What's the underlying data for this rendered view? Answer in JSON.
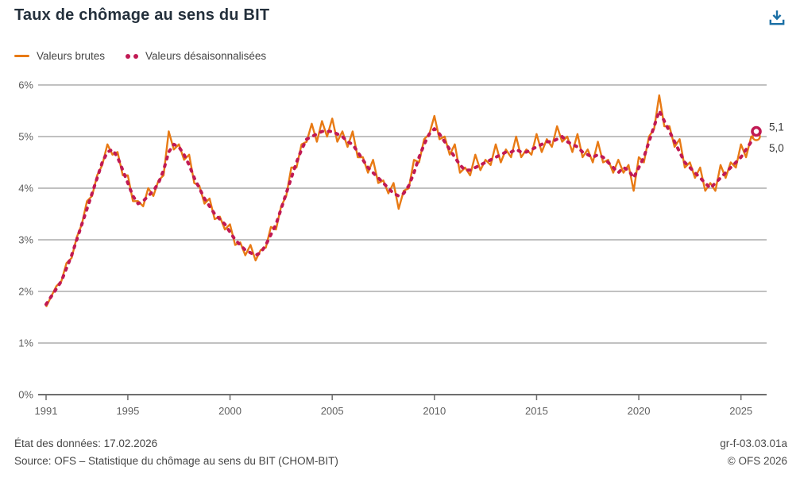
{
  "header": {
    "title": "Taux de chômage au sens du BIT"
  },
  "legend": [
    {
      "label": "Valeurs brutes",
      "color": "#e87a14",
      "style": "solid"
    },
    {
      "label": "Valeurs désaisonnalisées",
      "color": "#c11a54",
      "style": "dotted"
    }
  ],
  "colors": {
    "brut_orange": "#e87a14",
    "seasonal_magenta": "#c11a54",
    "download_blue": "#1a6fa5",
    "gridline": "#9c9c9c",
    "axis": "#6e6e6e",
    "title_text": "#24303c",
    "body_text": "#454545"
  },
  "chart_data": {
    "type": "line",
    "title": "Taux de chômage au sens du BIT",
    "xlabel": "",
    "ylabel": "",
    "grid": "horizontal",
    "legend_position": "top-left",
    "frequency": "quarterly",
    "x_start": "1991-Q1",
    "x_end": "2025-Q4",
    "x_tick_labels": [
      "1991",
      "1995",
      "2000",
      "2005",
      "2010",
      "2015",
      "2020",
      "2025"
    ],
    "y_tick_labels": [
      "0%",
      "1%",
      "2%",
      "3%",
      "4%",
      "5%",
      "6%"
    ],
    "ylim": [
      0,
      6
    ],
    "end_labels": [
      "5,1",
      "5,0"
    ],
    "series": [
      {
        "name": "Valeurs brutes",
        "color": "#e87a14",
        "style": "solid",
        "values": [
          1.7,
          1.9,
          2.1,
          2.2,
          2.55,
          2.65,
          3.05,
          3.3,
          3.75,
          3.85,
          4.25,
          4.45,
          4.85,
          4.65,
          4.7,
          4.25,
          4.25,
          3.75,
          3.75,
          3.65,
          4.0,
          3.85,
          4.15,
          4.25,
          5.1,
          4.75,
          4.85,
          4.55,
          4.65,
          4.1,
          4.05,
          3.7,
          3.8,
          3.4,
          3.45,
          3.2,
          3.3,
          2.9,
          2.95,
          2.7,
          2.9,
          2.6,
          2.8,
          2.85,
          3.25,
          3.2,
          3.65,
          3.85,
          4.4,
          4.4,
          4.85,
          4.9,
          5.25,
          4.9,
          5.3,
          5.0,
          5.35,
          4.9,
          5.1,
          4.8,
          5.1,
          4.6,
          4.6,
          4.3,
          4.55,
          4.1,
          4.15,
          3.9,
          4.1,
          3.6,
          3.95,
          4.0,
          4.55,
          4.5,
          4.95,
          5.05,
          5.4,
          4.95,
          5.0,
          4.65,
          4.85,
          4.3,
          4.4,
          4.25,
          4.65,
          4.35,
          4.55,
          4.45,
          4.85,
          4.5,
          4.75,
          4.6,
          5.0,
          4.6,
          4.75,
          4.65,
          5.05,
          4.7,
          4.95,
          4.8,
          5.2,
          4.9,
          5.0,
          4.7,
          5.05,
          4.6,
          4.75,
          4.5,
          4.9,
          4.5,
          4.55,
          4.3,
          4.55,
          4.3,
          4.45,
          3.95,
          4.6,
          4.5,
          5.0,
          5.15,
          5.8,
          5.2,
          5.2,
          4.8,
          4.95,
          4.4,
          4.5,
          4.2,
          4.4,
          3.95,
          4.1,
          3.95,
          4.45,
          4.2,
          4.5,
          4.4,
          4.85,
          4.6,
          5.0,
          5.0
        ]
      },
      {
        "name": "Valeurs désaisonnalisées",
        "color": "#c11a54",
        "style": "dotted",
        "values": [
          1.75,
          1.9,
          2.05,
          2.2,
          2.45,
          2.7,
          3.0,
          3.3,
          3.6,
          3.9,
          4.2,
          4.5,
          4.7,
          4.75,
          4.6,
          4.35,
          4.1,
          3.85,
          3.7,
          3.75,
          3.85,
          3.95,
          4.1,
          4.35,
          4.7,
          4.85,
          4.8,
          4.65,
          4.45,
          4.2,
          4.0,
          3.8,
          3.65,
          3.5,
          3.4,
          3.3,
          3.15,
          3.0,
          2.9,
          2.8,
          2.75,
          2.7,
          2.75,
          2.9,
          3.1,
          3.3,
          3.6,
          3.9,
          4.2,
          4.5,
          4.75,
          4.95,
          5.0,
          5.05,
          5.1,
          5.1,
          5.1,
          5.05,
          5.0,
          4.9,
          4.85,
          4.7,
          4.55,
          4.4,
          4.3,
          4.2,
          4.1,
          4.0,
          3.9,
          3.85,
          3.9,
          4.05,
          4.3,
          4.6,
          4.85,
          5.05,
          5.15,
          5.05,
          4.9,
          4.75,
          4.6,
          4.45,
          4.35,
          4.35,
          4.4,
          4.45,
          4.5,
          4.55,
          4.6,
          4.65,
          4.7,
          4.7,
          4.75,
          4.7,
          4.7,
          4.75,
          4.8,
          4.85,
          4.9,
          4.9,
          4.95,
          5.0,
          4.9,
          4.85,
          4.8,
          4.7,
          4.65,
          4.6,
          4.65,
          4.6,
          4.5,
          4.4,
          4.3,
          4.4,
          4.35,
          4.2,
          4.4,
          4.6,
          4.9,
          5.2,
          5.5,
          5.3,
          5.1,
          4.9,
          4.7,
          4.5,
          4.4,
          4.3,
          4.2,
          4.1,
          4.0,
          4.1,
          4.2,
          4.3,
          4.4,
          4.5,
          4.6,
          4.75,
          4.9,
          5.1
        ]
      }
    ]
  },
  "footer": {
    "status": "État des données: 17.02.2026",
    "source": "Source: OFS – Statistique du chômage au sens du BIT (CHOM-BIT)",
    "ref": "gr-f-03.03.01a",
    "copyright": "© OFS 2026"
  }
}
